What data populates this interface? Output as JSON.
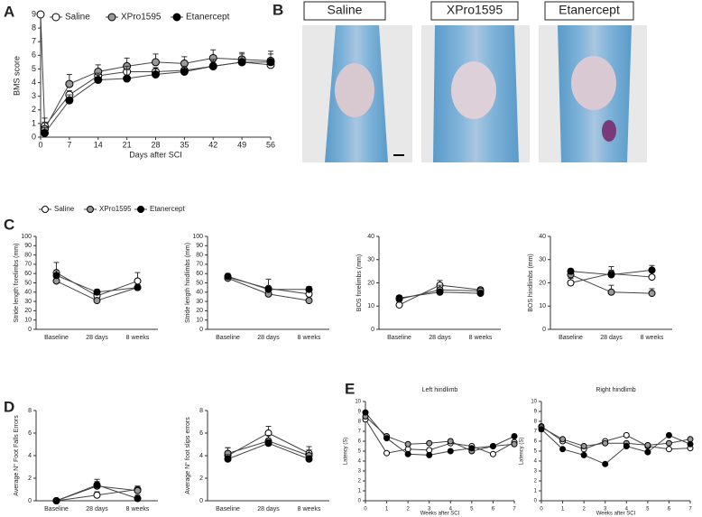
{
  "chart_data": [
    {
      "type": "line",
      "panel": "A",
      "xlabel": "Days after SCI",
      "ylabel": "BMS score",
      "x": [
        0,
        1,
        7,
        14,
        21,
        28,
        35,
        42,
        49,
        56
      ],
      "xlim": [
        0,
        56
      ],
      "xticks": [
        0,
        7,
        14,
        21,
        28,
        35,
        42,
        49,
        56
      ],
      "ylim": [
        0,
        9
      ],
      "yticks": [
        0,
        1,
        2,
        3,
        4,
        5,
        6,
        7,
        8,
        9
      ],
      "legend": "top",
      "series": [
        {
          "name": "Saline",
          "color": "#ffffff",
          "values": [
            9,
            0.8,
            3.1,
            4.5,
            4.8,
            4.8,
            4.9,
            5.2,
            5.5,
            5.3
          ],
          "errors": [
            0,
            0.6,
            0.3,
            0.3,
            0.3,
            0.3,
            0.3,
            0.3,
            0.3,
            0.3
          ]
        },
        {
          "name": "XPro1595",
          "color": "#999999",
          "values": [
            null,
            0.6,
            3.9,
            4.8,
            5.2,
            5.5,
            5.4,
            5.8,
            5.7,
            5.6
          ],
          "errors": [
            null,
            0.5,
            0.7,
            0.5,
            0.6,
            0.6,
            0.5,
            0.6,
            0.5,
            0.5
          ]
        },
        {
          "name": "Etanercept",
          "color": "#000000",
          "values": [
            null,
            0.3,
            2.7,
            4.2,
            4.3,
            4.6,
            4.8,
            5.2,
            5.5,
            5.5
          ],
          "errors": [
            null,
            0.4,
            0.4,
            0.5,
            0.9,
            0.4,
            0.4,
            0.5,
            0.6,
            0.8
          ]
        }
      ]
    },
    {
      "type": "line",
      "panel": "C",
      "ylabel": "Stride length forelimbs (mm)",
      "categories": [
        "Baseline",
        "28 days",
        "8 weeks"
      ],
      "ylim": [
        0,
        100
      ],
      "yticks": [
        0,
        10,
        20,
        30,
        40,
        50,
        60,
        70,
        80,
        90,
        100
      ],
      "legend": "top",
      "series": [
        {
          "name": "Saline",
          "color": "#ffffff",
          "values": [
            61,
            36,
            52
          ],
          "errors": [
            11,
            5,
            9
          ]
        },
        {
          "name": "XPro1595",
          "color": "#999999",
          "values": [
            52,
            31,
            45
          ],
          "errors": [
            3,
            2,
            2
          ]
        },
        {
          "name": "Etanercept",
          "color": "#000000",
          "values": [
            58,
            40,
            45
          ],
          "errors": [
            5,
            3,
            3
          ]
        }
      ]
    },
    {
      "type": "line",
      "ylabel": "Stride length hindlimbs (mm)",
      "categories": [
        "Baseline",
        "28 days",
        "8 weeks"
      ],
      "ylim": [
        0,
        100
      ],
      "yticks": [
        0,
        10,
        20,
        30,
        40,
        50,
        60,
        70,
        80,
        90,
        100
      ],
      "series": [
        {
          "name": "Saline",
          "color": "#ffffff",
          "values": [
            56,
            44,
            38
          ],
          "errors": [
            4,
            10,
            5
          ]
        },
        {
          "name": "XPro1595",
          "color": "#999999",
          "values": [
            55,
            38,
            31
          ],
          "errors": [
            2,
            3,
            2
          ]
        },
        {
          "name": "Etanercept",
          "color": "#000000",
          "values": [
            57,
            43,
            43
          ],
          "errors": [
            3,
            3,
            3
          ]
        }
      ]
    },
    {
      "type": "line",
      "ylabel": "BOS forelimbs (mm)",
      "categories": [
        "Baseline",
        "28 days",
        "8 weeks"
      ],
      "ylim": [
        0,
        40
      ],
      "yticks": [
        0,
        10,
        20,
        30,
        40
      ],
      "series": [
        {
          "name": "Saline",
          "color": "#ffffff",
          "values": [
            10.5,
            19,
            17
          ],
          "errors": [
            1,
            2,
            1
          ]
        },
        {
          "name": "XPro1595",
          "color": "#999999",
          "values": [
            13,
            17,
            16.5
          ],
          "errors": [
            1,
            2,
            1
          ]
        },
        {
          "name": "Etanercept",
          "color": "#000000",
          "values": [
            13.5,
            16,
            15.5
          ],
          "errors": [
            1,
            1,
            1
          ]
        }
      ]
    },
    {
      "type": "line",
      "ylabel": "BOS hindlimbs (mm)",
      "categories": [
        "Baseline",
        "28 days",
        "8 weeks"
      ],
      "ylim": [
        0,
        40
      ],
      "yticks": [
        0,
        10,
        20,
        30,
        40
      ],
      "series": [
        {
          "name": "Saline",
          "color": "#ffffff",
          "values": [
            20,
            24,
            22.5
          ],
          "errors": [
            2,
            3,
            2
          ]
        },
        {
          "name": "XPro1595",
          "color": "#999999",
          "values": [
            23.5,
            16,
            15.5
          ],
          "errors": [
            2,
            3,
            2
          ]
        },
        {
          "name": "Etanercept",
          "color": "#000000",
          "values": [
            25,
            23.5,
            25.5
          ],
          "errors": [
            1,
            2,
            2
          ]
        }
      ]
    },
    {
      "type": "line",
      "panel": "D",
      "ylabel": "Average N° Foot Falls Errors",
      "categories": [
        "Baseline",
        "28 days",
        "8 weeks"
      ],
      "ylim": [
        0,
        8
      ],
      "yticks": [
        0,
        2,
        4,
        6,
        8
      ],
      "series": [
        {
          "name": "Saline",
          "color": "#ffffff",
          "values": [
            0,
            0.5,
            1
          ],
          "errors": [
            0,
            0.3,
            0.3
          ]
        },
        {
          "name": "XPro1595",
          "color": "#999999",
          "values": [
            0,
            1.3,
            0.9
          ],
          "errors": [
            0,
            0.4,
            0.3
          ]
        },
        {
          "name": "Etanercept",
          "color": "#000000",
          "values": [
            0,
            1.4,
            0.2
          ],
          "errors": [
            0,
            0.5,
            0.3
          ]
        }
      ]
    },
    {
      "type": "line",
      "ylabel": "Average N° foot slips errors",
      "categories": [
        "Baseline",
        "28 days",
        "8 weeks"
      ],
      "ylim": [
        0,
        8
      ],
      "yticks": [
        0,
        2,
        4,
        6,
        8
      ],
      "series": [
        {
          "name": "Saline",
          "color": "#ffffff",
          "values": [
            4,
            6,
            4.2
          ],
          "errors": [
            0.7,
            0.6,
            0.6
          ]
        },
        {
          "name": "XPro1595",
          "color": "#999999",
          "values": [
            4.2,
            5.3,
            4
          ],
          "errors": [
            0.5,
            0.5,
            0.5
          ]
        },
        {
          "name": "Etanercept",
          "color": "#000000",
          "values": [
            3.7,
            5.1,
            3.7
          ],
          "errors": [
            0.4,
            0.3,
            0.3
          ]
        }
      ]
    },
    {
      "type": "line",
      "panel": "E",
      "title": "Left hindlimb",
      "xlabel": "Weeks after SCI",
      "ylabel": "Latency (S)",
      "x": [
        0,
        1,
        2,
        3,
        4,
        5,
        6,
        7
      ],
      "xlim": [
        0,
        7
      ],
      "xticks": [
        0,
        1,
        2,
        3,
        4,
        5,
        6,
        7
      ],
      "ylim": [
        0,
        10
      ],
      "yticks": [
        0,
        1,
        2,
        3,
        4,
        5,
        6,
        7,
        8,
        9,
        10
      ],
      "series": [
        {
          "name": "Saline",
          "color": "#ffffff",
          "values": [
            8.2,
            4.8,
            5.2,
            5.1,
            5.8,
            5.5,
            4.7,
            5.9
          ]
        },
        {
          "name": "XPro1595",
          "color": "#999999",
          "values": [
            8.5,
            6.5,
            5.7,
            5.8,
            6,
            5,
            5.5,
            5.7
          ]
        },
        {
          "name": "Etanercept",
          "color": "#000000",
          "values": [
            8.9,
            6.3,
            4.7,
            4.6,
            5,
            5.3,
            5.5,
            6.5
          ]
        }
      ]
    },
    {
      "type": "line",
      "title": "Right hindlimb",
      "xlabel": "Weeks after SCI",
      "ylabel": "Latency (S)",
      "x": [
        0,
        1,
        2,
        3,
        4,
        5,
        6,
        7
      ],
      "xlim": [
        0,
        7
      ],
      "xticks": [
        0,
        1,
        2,
        3,
        4,
        5,
        6,
        7
      ],
      "ylim": [
        0,
        10
      ],
      "yticks": [
        0,
        1,
        2,
        3,
        4,
        5,
        6,
        7,
        8,
        9,
        10
      ],
      "series": [
        {
          "name": "Saline",
          "color": "#ffffff",
          "values": [
            7.5,
            6,
            5.2,
            6,
            6.6,
            5.5,
            5.2,
            5.3
          ]
        },
        {
          "name": "XPro1595",
          "color": "#999999",
          "values": [
            7.4,
            6.2,
            5.5,
            5.8,
            5.8,
            5.6,
            5.8,
            6.2
          ]
        },
        {
          "name": "Etanercept",
          "color": "#000000",
          "values": [
            7.2,
            5.2,
            4.6,
            3.7,
            5.5,
            4.9,
            6.6,
            5.7
          ]
        }
      ]
    }
  ],
  "histology": {
    "panel": "B",
    "labels": [
      "Saline",
      "XPro1595",
      "Etanercept"
    ]
  }
}
